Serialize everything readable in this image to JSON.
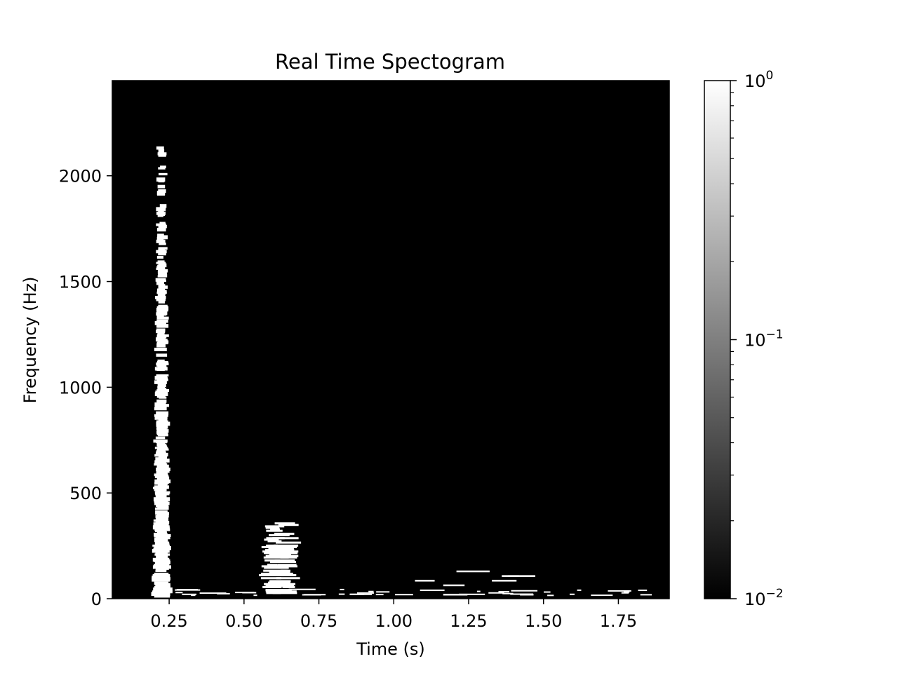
{
  "chart_data": {
    "type": "heatmap",
    "title": "Real Time Spectogram",
    "xlabel": "Time (s)",
    "ylabel": "Frequency (Hz)",
    "xlim": [
      0.06,
      1.92
    ],
    "ylim": [
      0,
      2450
    ],
    "x_ticks": [
      0.25,
      0.5,
      0.75,
      1.0,
      1.25,
      1.5,
      1.75
    ],
    "x_tick_labels": [
      "0.25",
      "0.50",
      "0.75",
      "1.00",
      "1.25",
      "1.50",
      "1.75"
    ],
    "y_ticks": [
      0,
      500,
      1000,
      1500,
      2000
    ],
    "y_tick_labels": [
      "0",
      "500",
      "1000",
      "1500",
      "2000"
    ],
    "colormap": "gray",
    "background_color": "#000000",
    "foreground_color": "#ffffff",
    "colorbar": {
      "scale": "log",
      "range": [
        0.01,
        1
      ],
      "tick_values": [
        0.01,
        0.1,
        1
      ],
      "tick_labels": [
        {
          "base": "10",
          "exp": "−2"
        },
        {
          "base": "10",
          "exp": "−1"
        },
        {
          "base": "10",
          "exp": "0"
        }
      ]
    },
    "bursts": [
      {
        "t_start": 0.19,
        "t_end": 0.26,
        "f_low": 20,
        "f_high": 2140
      },
      {
        "t_start": 0.56,
        "t_end": 0.68,
        "f_low": 20,
        "f_high": 360
      },
      {
        "t_start": 1.0,
        "t_end": 1.48,
        "f_low": 20,
        "f_high": 130
      }
    ]
  }
}
